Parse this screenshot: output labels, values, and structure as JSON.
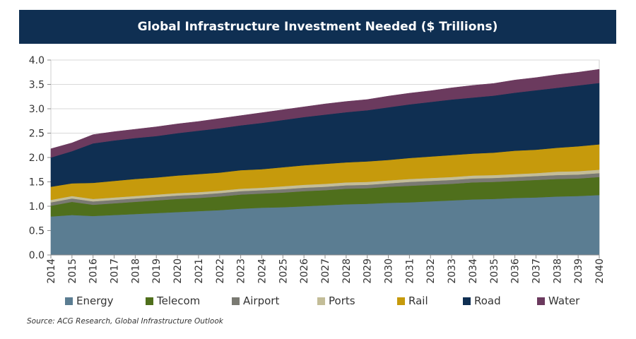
{
  "chart_data": {
    "type": "area",
    "stacked": true,
    "title": "Global Infrastructure Investment Needed ($ Trillions)",
    "xlabel": "",
    "ylabel": "",
    "ylim": [
      0,
      4
    ],
    "yticks": [
      "0.0",
      "0.5",
      "1.0",
      "1.5",
      "2.0",
      "2.5",
      "3.0",
      "3.5",
      "4.0"
    ],
    "x": [
      "2014",
      "2015",
      "2016",
      "2017",
      "2018",
      "2019",
      "2020",
      "2021",
      "2022",
      "2023",
      "2024",
      "2025",
      "2026",
      "2027",
      "2028",
      "2029",
      "2030",
      "2031",
      "2032",
      "2033",
      "2034",
      "2035",
      "2036",
      "2037",
      "2038",
      "2039",
      "2040"
    ],
    "series": [
      {
        "name": "Energy",
        "color": "#5b7d92",
        "values": [
          0.79,
          0.82,
          0.8,
          0.82,
          0.84,
          0.86,
          0.88,
          0.9,
          0.92,
          0.95,
          0.97,
          0.98,
          1.0,
          1.02,
          1.04,
          1.05,
          1.07,
          1.08,
          1.1,
          1.12,
          1.14,
          1.15,
          1.17,
          1.18,
          1.2,
          1.21,
          1.23
        ]
      },
      {
        "name": "Telecom",
        "color": "#4f6f1c",
        "values": [
          0.22,
          0.27,
          0.23,
          0.24,
          0.25,
          0.26,
          0.27,
          0.27,
          0.28,
          0.29,
          0.29,
          0.3,
          0.31,
          0.31,
          0.32,
          0.32,
          0.33,
          0.34,
          0.34,
          0.34,
          0.35,
          0.35,
          0.35,
          0.36,
          0.36,
          0.36,
          0.37
        ]
      },
      {
        "name": "Airport",
        "color": "#7a7a72",
        "values": [
          0.07,
          0.07,
          0.07,
          0.07,
          0.07,
          0.07,
          0.07,
          0.07,
          0.07,
          0.07,
          0.07,
          0.07,
          0.07,
          0.07,
          0.07,
          0.07,
          0.07,
          0.08,
          0.08,
          0.08,
          0.08,
          0.08,
          0.08,
          0.08,
          0.08,
          0.08,
          0.08
        ]
      },
      {
        "name": "Ports",
        "color": "#c3bd98",
        "values": [
          0.05,
          0.05,
          0.05,
          0.05,
          0.05,
          0.05,
          0.05,
          0.05,
          0.05,
          0.05,
          0.05,
          0.06,
          0.06,
          0.06,
          0.06,
          0.06,
          0.06,
          0.06,
          0.06,
          0.06,
          0.06,
          0.06,
          0.06,
          0.06,
          0.07,
          0.07,
          0.07
        ]
      },
      {
        "name": "Rail",
        "color": "#c69a0c",
        "values": [
          0.27,
          0.26,
          0.33,
          0.34,
          0.35,
          0.35,
          0.36,
          0.37,
          0.37,
          0.38,
          0.38,
          0.39,
          0.4,
          0.41,
          0.41,
          0.42,
          0.42,
          0.43,
          0.44,
          0.45,
          0.45,
          0.46,
          0.48,
          0.48,
          0.49,
          0.51,
          0.52
        ]
      },
      {
        "name": "Road",
        "color": "#0f2f52",
        "values": [
          0.6,
          0.66,
          0.81,
          0.83,
          0.84,
          0.85,
          0.87,
          0.89,
          0.91,
          0.92,
          0.95,
          0.97,
          0.99,
          1.01,
          1.03,
          1.05,
          1.08,
          1.1,
          1.12,
          1.14,
          1.15,
          1.17,
          1.19,
          1.22,
          1.23,
          1.25,
          1.26
        ]
      },
      {
        "name": "Water",
        "color": "#6b3a5e",
        "values": [
          0.18,
          0.17,
          0.18,
          0.18,
          0.18,
          0.19,
          0.19,
          0.19,
          0.2,
          0.2,
          0.21,
          0.21,
          0.21,
          0.22,
          0.22,
          0.22,
          0.23,
          0.23,
          0.23,
          0.24,
          0.25,
          0.25,
          0.26,
          0.26,
          0.27,
          0.27,
          0.28
        ]
      }
    ],
    "legend_position": "bottom",
    "source": "Source: ACG Research, Global Infrastructure Outlook"
  }
}
